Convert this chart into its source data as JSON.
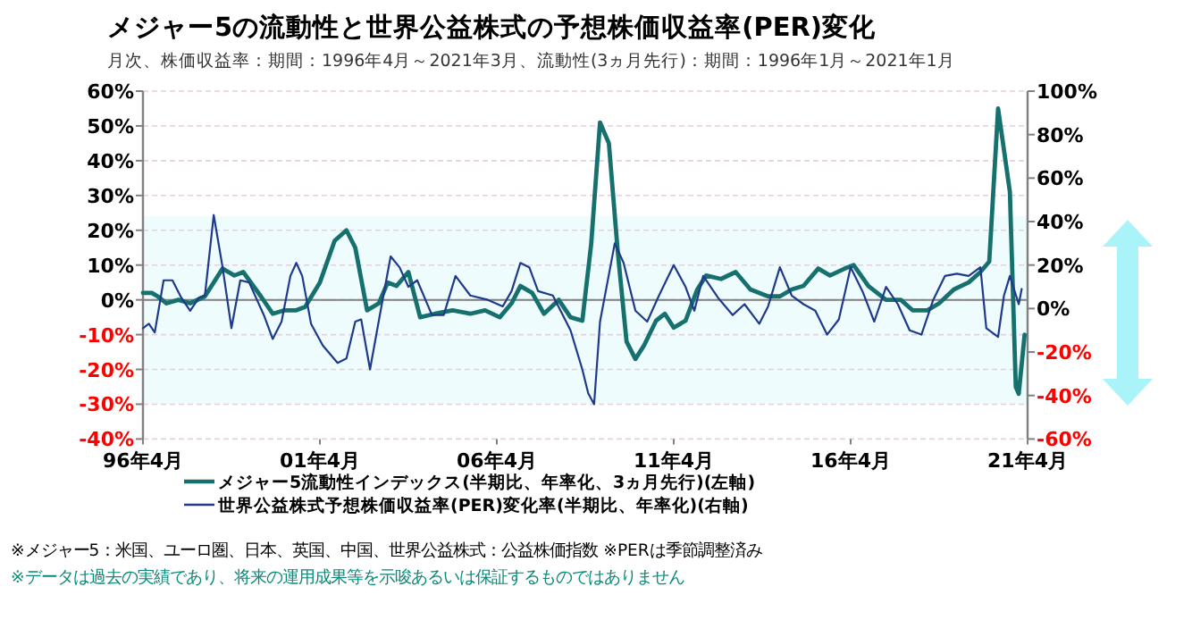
{
  "chart_data": {
    "type": "line",
    "title": "メジャー5の流動性と世界公益株式の予想株価収益率(PER)変化",
    "subtitle": "月次、株価収益率：期間：1996年4月～2021年3月、流動性(3ヵ月先行)：期間：1996年1月～2021年1月",
    "xlim": [
      "1996-04",
      "2021-04"
    ],
    "xticks": [
      {
        "value": "1996-04",
        "label": "96年4月"
      },
      {
        "value": "2001-04",
        "label": "01年4月"
      },
      {
        "value": "2006-04",
        "label": "06年4月"
      },
      {
        "value": "2011-04",
        "label": "11年4月"
      },
      {
        "value": "2016-04",
        "label": "16年4月"
      },
      {
        "value": "2021-04",
        "label": "21年4月"
      }
    ],
    "ylim": [
      -40,
      60
    ],
    "yticks": [
      {
        "value": -40,
        "label": "-40%"
      },
      {
        "value": -30,
        "label": "-30%"
      },
      {
        "value": -20,
        "label": "-20%"
      },
      {
        "value": -10,
        "label": "-10%"
      },
      {
        "value": 0,
        "label": "0%"
      },
      {
        "value": 10,
        "label": "10%"
      },
      {
        "value": 20,
        "label": "20%"
      },
      {
        "value": 30,
        "label": "30%"
      },
      {
        "value": 40,
        "label": "40%"
      },
      {
        "value": 50,
        "label": "50%"
      },
      {
        "value": 60,
        "label": "60%"
      }
    ],
    "y2lim": [
      -60,
      100
    ],
    "y2ticks": [
      {
        "value": -60,
        "label": "-60%"
      },
      {
        "value": -40,
        "label": "-40%"
      },
      {
        "value": -20,
        "label": "-20%"
      },
      {
        "value": 0,
        "label": "0%"
      },
      {
        "value": 20,
        "label": "20%"
      },
      {
        "value": 40,
        "label": "40%"
      },
      {
        "value": 60,
        "label": "60%"
      },
      {
        "value": 80,
        "label": "80%"
      },
      {
        "value": 100,
        "label": "100%"
      }
    ],
    "grid": "y",
    "legend": "bottom",
    "marker": "none",
    "line_style": "solid",
    "ref_lines": [
      {
        "axis": "y",
        "value": 0,
        "color": "#808080"
      }
    ],
    "bands": [
      {
        "axis": "y",
        "from": -30,
        "to": 24,
        "color": "#eefcfd"
      }
    ],
    "series": [
      {
        "name": "メジャー5流動性インデックス(半期比、年率化、3ヵ月先行)(左軸)",
        "color": "#16706e",
        "x": [
          "1996-04",
          "1996-07",
          "1996-09",
          "1996-12",
          "1997-04",
          "1997-08",
          "1998-01",
          "1998-07",
          "1998-11",
          "1999-02",
          "1999-08",
          "1999-12",
          "2000-04",
          "2000-08",
          "2000-11",
          "2001-04",
          "2001-09",
          "2002-01",
          "2002-04",
          "2002-08",
          "2002-12",
          "2003-03",
          "2003-06",
          "2003-10",
          "2004-02",
          "2004-07",
          "2005-01",
          "2005-07",
          "2005-12",
          "2006-05",
          "2006-09",
          "2006-12",
          "2007-04",
          "2007-08",
          "2008-01",
          "2008-05",
          "2008-09",
          "2008-12",
          "2009-03",
          "2009-06",
          "2009-09",
          "2009-12",
          "2010-03",
          "2010-06",
          "2010-10",
          "2011-01",
          "2011-04",
          "2011-08",
          "2011-12",
          "2012-03",
          "2012-08",
          "2013-01",
          "2013-06",
          "2013-12",
          "2014-04",
          "2014-08",
          "2014-12",
          "2015-05",
          "2015-09",
          "2016-02",
          "2016-05",
          "2016-10",
          "2017-04",
          "2017-09",
          "2018-01",
          "2018-06",
          "2018-10",
          "2019-03",
          "2019-08",
          "2019-12",
          "2020-03",
          "2020-06",
          "2020-08",
          "2020-10",
          "2020-12",
          "2021-01",
          "2021-03"
        ],
        "values": [
          2,
          2,
          1,
          -1,
          0,
          -1,
          1,
          9,
          7,
          8,
          1,
          -4,
          -3,
          -3,
          -2,
          5,
          17,
          20,
          15,
          -3,
          -1,
          5,
          4,
          8,
          -5,
          -4,
          -3,
          -4,
          -3,
          -5,
          -1,
          4,
          2,
          -4,
          0,
          -5,
          -6,
          16,
          51,
          45,
          14,
          -12,
          -17,
          -13,
          -6,
          -4,
          -8,
          -6,
          3,
          7,
          6,
          8,
          3,
          1,
          1,
          3,
          4,
          9,
          7,
          9,
          10,
          4,
          0,
          0,
          -3,
          -3,
          -1,
          3,
          5,
          8,
          11,
          55,
          43,
          31,
          -25,
          -27,
          -10
        ]
      },
      {
        "name": "世界公益株式予想株価収益率(PER)変化率(半期比、年率化)(右軸)",
        "color": "#1f3a8a",
        "axis": "y2",
        "x": [
          "1996-04",
          "1996-06",
          "1996-08",
          "1996-11",
          "1997-02",
          "1997-05",
          "1997-08",
          "1997-11",
          "1998-01",
          "1998-04",
          "1998-07",
          "1998-10",
          "1999-01",
          "1999-04",
          "1999-09",
          "1999-12",
          "2000-03",
          "2000-06",
          "2000-08",
          "2000-10",
          "2001-01",
          "2001-05",
          "2001-10",
          "2002-01",
          "2002-04",
          "2002-06",
          "2002-09",
          "2003-01",
          "2003-04",
          "2003-07",
          "2003-10",
          "2004-01",
          "2004-06",
          "2004-10",
          "2005-02",
          "2005-07",
          "2006-01",
          "2006-06",
          "2006-09",
          "2006-12",
          "2007-03",
          "2007-06",
          "2007-11",
          "2008-05",
          "2008-09",
          "2008-11",
          "2009-01",
          "2009-03",
          "2009-08",
          "2009-11",
          "2010-03",
          "2010-07",
          "2010-11",
          "2011-04",
          "2011-08",
          "2011-11",
          "2012-02",
          "2012-07",
          "2012-12",
          "2013-04",
          "2013-09",
          "2013-12",
          "2014-04",
          "2014-08",
          "2014-12",
          "2015-04",
          "2015-08",
          "2015-12",
          "2016-04",
          "2016-08",
          "2016-12",
          "2017-04",
          "2017-08",
          "2017-12",
          "2018-04",
          "2018-08",
          "2018-12",
          "2019-04",
          "2019-08",
          "2019-12",
          "2020-02",
          "2020-06",
          "2020-08",
          "2020-10",
          "2021-01",
          "2021-02"
        ],
        "values": [
          -9,
          -7,
          -11,
          13,
          13,
          5,
          -1,
          5,
          6,
          43,
          19,
          -9,
          13,
          12,
          -3,
          -14,
          -6,
          15,
          21,
          15,
          -7,
          -17,
          -25,
          -23,
          -6,
          -5,
          -28,
          2,
          24,
          19,
          10,
          13,
          -3,
          -3,
          15,
          6,
          4,
          1,
          8,
          21,
          19,
          8,
          6,
          -10,
          -28,
          -39,
          -44,
          -6,
          30,
          21,
          -1,
          -6,
          6,
          20,
          10,
          -1,
          15,
          5,
          -3,
          2,
          -7,
          1,
          19,
          6,
          2,
          -1,
          -12,
          -5,
          19,
          8,
          -6,
          10,
          2,
          -10,
          -12,
          4,
          15,
          16,
          15,
          19,
          -9,
          -13,
          6,
          15,
          2,
          9
        ]
      }
    ],
    "annotations": [
      "※メジャー5：米国、ユーロ圏、日本、英国、中国、世界公益株式：公益株価指数 ※PERは季節調整済み",
      "※データは過去の実績であり、将来の運用成果等を示唆あるいは保証するものではありません"
    ]
  }
}
